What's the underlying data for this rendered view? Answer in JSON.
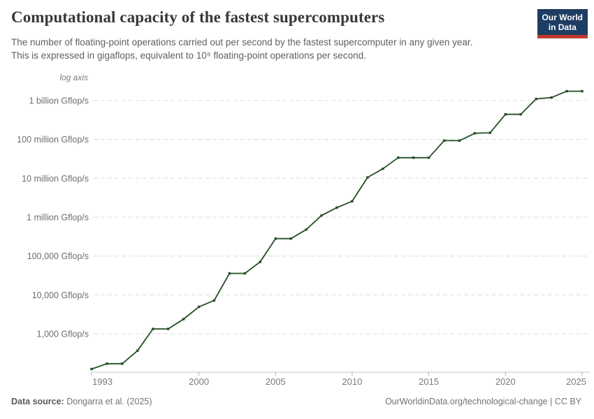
{
  "header": {
    "title": "Computational capacity of the fastest supercomputers",
    "subtitle_line1": "The number of floating-point operations carried out per second by the fastest supercomputer in any given year.",
    "subtitle_line2": "This is expressed in gigaflops, equivalent to 10⁹ floating-point operations per second.",
    "logo": {
      "line1": "Our World",
      "line2": "in Data",
      "bg_color": "#1d3d63",
      "bar_color": "#c0382e"
    }
  },
  "chart_data": {
    "type": "line",
    "title": "Computational capacity of the fastest supercomputers",
    "axis_note": "log axis",
    "y_scale": "log",
    "grid": true,
    "legend": "none",
    "line_color": "#254f24",
    "x": [
      1993,
      1994,
      1995,
      1996,
      1997,
      1998,
      1999,
      2000,
      2001,
      2002,
      2003,
      2004,
      2005,
      2006,
      2007,
      2008,
      2009,
      2010,
      2011,
      2012,
      2013,
      2014,
      2015,
      2016,
      2017,
      2018,
      2019,
      2020,
      2021,
      2022,
      2023,
      2024,
      2025
    ],
    "values": [
      124,
      170,
      170,
      368,
      1338,
      1338,
      2380,
      4938,
      7226,
      35860,
      35860,
      70720,
      280600,
      280600,
      478200,
      1105000,
      1759000,
      2566000,
      10510000,
      17590000,
      33862700,
      33862700,
      33862700,
      93014600,
      93014600,
      143500000,
      148600000,
      442010000,
      442010000,
      1102000000,
      1194000000,
      1742000000,
      1742000000
    ],
    "unit": "Gflop/s",
    "ylim": [
      100,
      2000000000
    ],
    "y_ticks": [
      {
        "value": 1000,
        "label": "1,000 Gflop/s"
      },
      {
        "value": 10000,
        "label": "10,000 Gflop/s"
      },
      {
        "value": 100000,
        "label": "100,000 Gflop/s"
      },
      {
        "value": 1000000,
        "label": "1 million Gflop/s"
      },
      {
        "value": 10000000,
        "label": "10 million Gflop/s"
      },
      {
        "value": 100000000,
        "label": "100 million Gflop/s"
      },
      {
        "value": 1000000000,
        "label": "1 billion Gflop/s"
      }
    ],
    "x_ticks": [
      1993,
      2000,
      2005,
      2010,
      2015,
      2020,
      2025
    ]
  },
  "footer": {
    "source_label": "Data source:",
    "source_value": "Dongarra et al. (2025)",
    "credit": "OurWorldinData.org/technological-change | CC BY"
  }
}
